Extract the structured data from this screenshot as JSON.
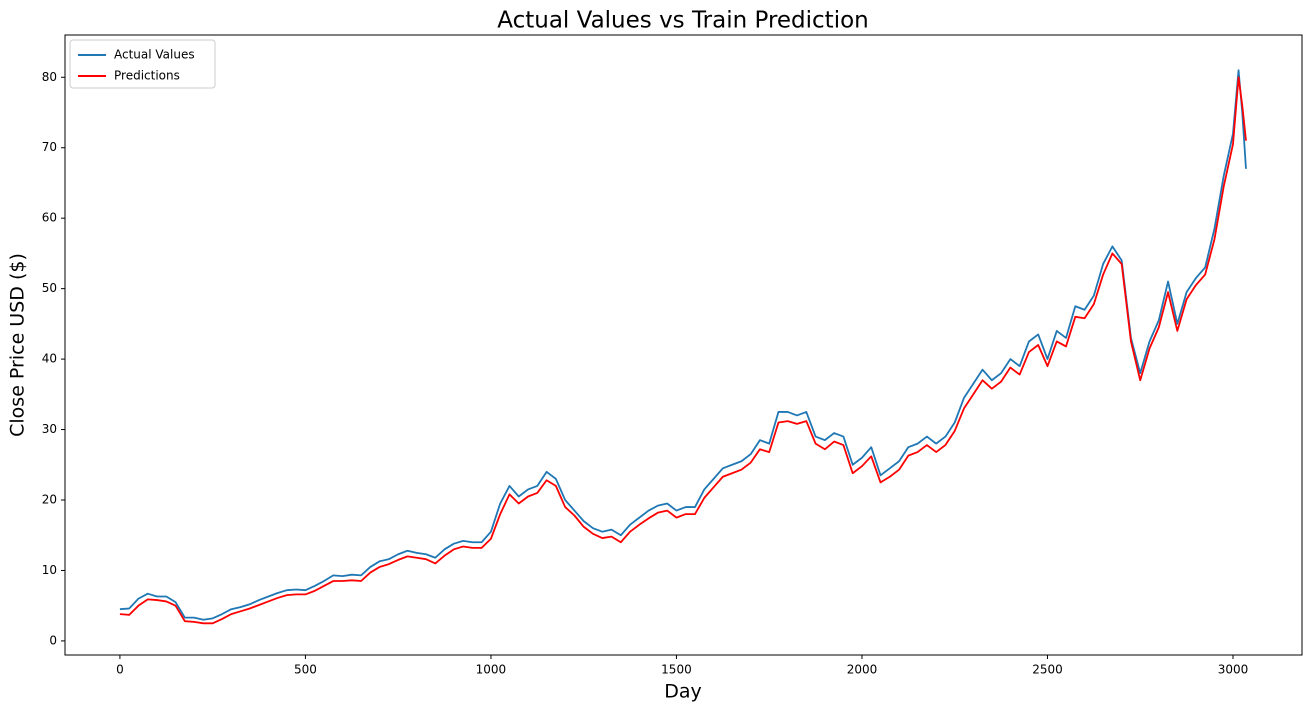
{
  "chart_data": {
    "type": "line",
    "title": "Actual Values vs Train Prediction",
    "x_label": "Day",
    "y_label": "Close Price USD ($)",
    "x": [
      0,
      25,
      50,
      75,
      100,
      125,
      150,
      175,
      200,
      225,
      250,
      275,
      300,
      325,
      350,
      375,
      400,
      425,
      450,
      475,
      500,
      525,
      550,
      575,
      600,
      625,
      650,
      675,
      700,
      725,
      750,
      775,
      800,
      825,
      850,
      875,
      900,
      925,
      950,
      975,
      1000,
      1025,
      1050,
      1075,
      1100,
      1125,
      1150,
      1175,
      1200,
      1225,
      1250,
      1275,
      1300,
      1325,
      1350,
      1375,
      1400,
      1425,
      1450,
      1475,
      1500,
      1525,
      1550,
      1575,
      1600,
      1625,
      1650,
      1675,
      1700,
      1725,
      1750,
      1775,
      1800,
      1825,
      1850,
      1875,
      1900,
      1925,
      1950,
      1975,
      2000,
      2025,
      2050,
      2075,
      2100,
      2125,
      2150,
      2175,
      2200,
      2225,
      2250,
      2275,
      2300,
      2325,
      2350,
      2375,
      2400,
      2425,
      2450,
      2475,
      2500,
      2525,
      2550,
      2575,
      2600,
      2625,
      2650,
      2675,
      2700,
      2725,
      2750,
      2775,
      2800,
      2825,
      2850,
      2875,
      2900,
      2925,
      2950,
      2975,
      3000,
      3015,
      3025,
      3035
    ],
    "series": [
      {
        "name": "Actual Values",
        "color": "#1f77b4",
        "values": [
          4.5,
          4.6,
          6.0,
          6.7,
          6.3,
          6.3,
          5.5,
          3.3,
          3.3,
          3.0,
          3.2,
          3.8,
          4.5,
          4.8,
          5.2,
          5.8,
          6.3,
          6.8,
          7.2,
          7.3,
          7.2,
          7.8,
          8.5,
          9.3,
          9.2,
          9.4,
          9.3,
          10.5,
          11.3,
          11.6,
          12.3,
          12.8,
          12.5,
          12.3,
          11.8,
          13.0,
          13.8,
          14.2,
          14.0,
          14.0,
          15.5,
          19.5,
          22.0,
          20.5,
          21.5,
          22.0,
          24.0,
          23.0,
          20.0,
          18.5,
          17.0,
          16.0,
          15.5,
          15.8,
          15.0,
          16.5,
          17.5,
          18.5,
          19.2,
          19.5,
          18.5,
          19.0,
          19.0,
          21.5,
          23.0,
          24.5,
          25.0,
          25.5,
          26.5,
          28.5,
          28.0,
          32.5,
          32.5,
          32.0,
          32.5,
          29.0,
          28.5,
          29.5,
          29.0,
          25.0,
          26.0,
          27.5,
          23.5,
          24.5,
          25.5,
          27.5,
          28.0,
          29.0,
          28.0,
          29.0,
          31.0,
          34.5,
          36.5,
          38.5,
          37.0,
          38.0,
          40.0,
          39.0,
          42.5,
          43.5,
          40.0,
          44.0,
          43.0,
          47.5,
          47.0,
          49.0,
          53.5,
          56.0,
          54.0,
          43.0,
          38.0,
          42.5,
          45.5,
          51.0,
          45.0,
          49.5,
          51.5,
          53.0,
          58.5,
          66.0,
          72.0,
          81.0,
          75.0,
          67.0
        ]
      },
      {
        "name": "Predictions",
        "color": "#ff0000",
        "values": [
          3.8,
          3.7,
          5.0,
          5.9,
          5.8,
          5.6,
          5.0,
          2.8,
          2.7,
          2.5,
          2.5,
          3.1,
          3.8,
          4.2,
          4.6,
          5.1,
          5.6,
          6.1,
          6.5,
          6.6,
          6.6,
          7.1,
          7.8,
          8.5,
          8.5,
          8.6,
          8.5,
          9.7,
          10.5,
          10.9,
          11.5,
          12.0,
          11.8,
          11.6,
          11.0,
          12.1,
          13.0,
          13.4,
          13.2,
          13.2,
          14.5,
          18.0,
          20.8,
          19.5,
          20.5,
          21.0,
          22.8,
          22.0,
          19.0,
          17.8,
          16.2,
          15.2,
          14.6,
          14.8,
          14.0,
          15.5,
          16.5,
          17.4,
          18.2,
          18.5,
          17.5,
          18.0,
          18.0,
          20.3,
          21.8,
          23.3,
          23.8,
          24.3,
          25.3,
          27.2,
          26.8,
          31.0,
          31.2,
          30.8,
          31.2,
          28.0,
          27.2,
          28.3,
          27.8,
          23.8,
          24.8,
          26.2,
          22.5,
          23.3,
          24.3,
          26.3,
          26.8,
          27.8,
          26.8,
          27.8,
          29.8,
          33.0,
          35.0,
          37.0,
          35.8,
          36.8,
          38.8,
          37.8,
          41.0,
          42.0,
          39.0,
          42.5,
          41.8,
          46.0,
          45.8,
          47.8,
          52.0,
          55.0,
          53.5,
          42.5,
          37.0,
          41.5,
          44.5,
          49.5,
          44.0,
          48.5,
          50.5,
          52.0,
          57.0,
          64.5,
          70.5,
          80.0,
          76.0,
          71.0
        ]
      }
    ],
    "xlim": [
      -148,
      3186
    ],
    "ylim": [
      -2,
      86
    ],
    "xticks": [
      0,
      500,
      1000,
      1500,
      2000,
      2500,
      3000
    ],
    "yticks": [
      0,
      10,
      20,
      30,
      40,
      50,
      60,
      70,
      80
    ],
    "legend": "upper left",
    "grid": false
  }
}
